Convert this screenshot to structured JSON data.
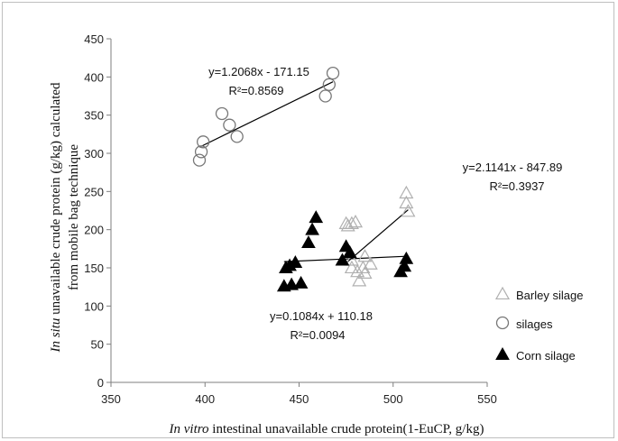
{
  "chart_data": {
    "type": "scatter",
    "xlabel_italic": "In vitro",
    "xlabel_rest": " intestinal unavailable crude protein(1-EuCP, g/kg)",
    "ylabel_italic": "In situ",
    "ylabel_line1_rest": " unavailable crude protein (g/kg) calculated",
    "ylabel_line2": "from mobile bag technique",
    "xlim": [
      350,
      550
    ],
    "ylim": [
      0,
      450
    ],
    "x_ticks": [
      350,
      400,
      450,
      500,
      550
    ],
    "y_ticks": [
      0,
      50,
      100,
      150,
      200,
      250,
      300,
      350,
      400,
      450
    ],
    "grid": false,
    "legend_position": "right",
    "series": [
      {
        "name": "Barley silage",
        "marker": "open-triangle",
        "color": "#b0b0b0",
        "points": [
          [
            475,
            208
          ],
          [
            478,
            208
          ],
          [
            480,
            210
          ],
          [
            476,
            205
          ],
          [
            478,
            150
          ],
          [
            481,
            145
          ],
          [
            482,
            133
          ],
          [
            484,
            150
          ],
          [
            485,
            143
          ],
          [
            488,
            155
          ],
          [
            485,
            165
          ],
          [
            478,
            160
          ],
          [
            507,
            248
          ],
          [
            507,
            235
          ],
          [
            508,
            224
          ]
        ]
      },
      {
        "name": "silages",
        "marker": "open-circle",
        "color": "#777777",
        "points": [
          [
            397,
            291
          ],
          [
            398,
            302
          ],
          [
            399,
            315
          ],
          [
            409,
            352
          ],
          [
            413,
            337
          ],
          [
            417,
            322
          ],
          [
            464,
            375
          ],
          [
            466,
            390
          ],
          [
            468,
            405
          ]
        ]
      },
      {
        "name": "Corn silage",
        "marker": "filled-triangle",
        "color": "#000000",
        "points": [
          [
            442,
            126
          ],
          [
            443,
            150
          ],
          [
            445,
            153
          ],
          [
            446,
            128
          ],
          [
            448,
            157
          ],
          [
            451,
            130
          ],
          [
            455,
            183
          ],
          [
            457,
            200
          ],
          [
            459,
            216
          ],
          [
            473,
            160
          ],
          [
            475,
            178
          ],
          [
            477,
            170
          ],
          [
            504,
            145
          ],
          [
            506,
            152
          ],
          [
            507,
            162
          ]
        ]
      }
    ],
    "trendlines": [
      {
        "equation": "y=1.2068x - 171.15",
        "r2": "R²=0.8569",
        "x1": 397,
        "x2": 468,
        "slope": 1.2068,
        "intercept": -171.15
      },
      {
        "equation": "y=2.1141x - 847.89",
        "r2": "R²=0.3937",
        "x1": 475,
        "x2": 508,
        "slope": 2.1141,
        "intercept": -847.89
      },
      {
        "equation": "y=0.1084x + 110.18",
        "r2": "R²=0.0094",
        "x1": 442,
        "x2": 507,
        "slope": 0.1084,
        "intercept": 110.18
      }
    ]
  }
}
